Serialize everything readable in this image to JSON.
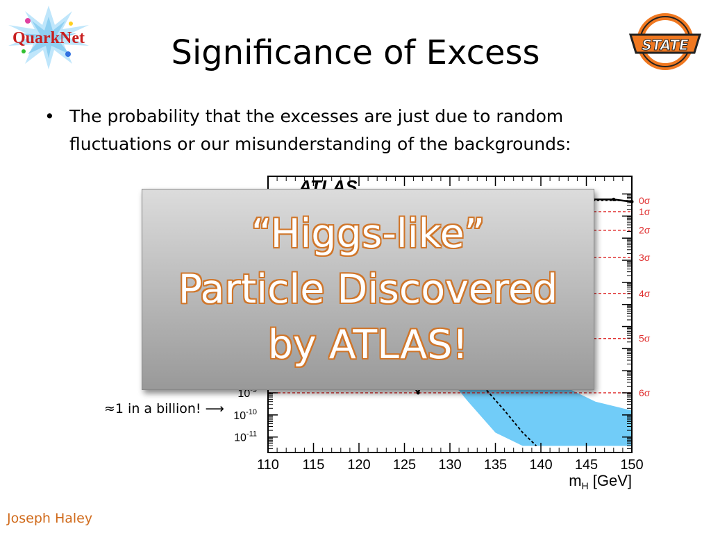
{
  "slide": {
    "title": "Significance of Excess",
    "bullet": "The probability that the excesses are just due to random fluctuations or our misunderstanding of the backgrounds:",
    "overlay_lines": [
      "“Higgs-like”",
      "Particle Discovered",
      "by ATLAS!"
    ],
    "annotation": "≈1 in a billion!  ⟶",
    "footer": "Joseph Haley",
    "logos": {
      "left": "QuarkNet",
      "right": "STATE"
    }
  },
  "colors": {
    "accent": "#d06a1a",
    "band": "#62c7f7",
    "sigma_line": "#e03030",
    "sigma_text": "#e03030"
  },
  "chart_data": {
    "type": "line",
    "title": "ATLAS",
    "xlabel": "m_H [GeV]",
    "ylabel": "",
    "xlim": [
      110,
      150
    ],
    "x_ticks": [
      "110",
      "115",
      "120",
      "125",
      "130",
      "135",
      "140",
      "145",
      "150"
    ],
    "y_ticks": [
      {
        "value": -8,
        "label": "10",
        "exp": "-8"
      },
      {
        "value": -9,
        "label": "10",
        "exp": "-9"
      },
      {
        "value": -10,
        "label": "10",
        "exp": "-10"
      },
      {
        "value": -11,
        "label": "10",
        "exp": "-11"
      }
    ],
    "sigma_levels": [
      {
        "label": "0σ",
        "log10_p": -0.3
      },
      {
        "label": "1σ",
        "log10_p": -0.8
      },
      {
        "label": "2σ",
        "log10_p": -1.64
      },
      {
        "label": "3σ",
        "log10_p": -2.87
      },
      {
        "label": "4σ",
        "log10_p": -4.5
      },
      {
        "label": "5σ",
        "log10_p": -6.54
      },
      {
        "label": "6σ",
        "log10_p": -9.0
      }
    ],
    "observed": {
      "x": [
        110,
        115,
        120,
        122,
        124,
        125,
        126,
        126.5,
        127,
        128,
        130,
        135,
        140,
        145,
        148,
        150
      ],
      "log10_p": [
        -0.25,
        -0.3,
        -0.4,
        -1.2,
        -4.5,
        -7.0,
        -8.7,
        -9.0,
        -8.5,
        -6.0,
        -2.5,
        -0.5,
        -0.3,
        -0.25,
        -0.25,
        -0.35
      ]
    },
    "expected": {
      "x": [
        125,
        127,
        130,
        133,
        136,
        138,
        139.5
      ],
      "log10_p": [
        -4.0,
        -5.4,
        -7.0,
        -8.4,
        -9.8,
        -10.8,
        -11.4
      ]
    },
    "band": {
      "x": [
        125,
        128,
        132,
        135,
        138,
        142,
        146,
        150
      ],
      "upper": [
        -3.0,
        -4.3,
        -6.0,
        -7.1,
        -7.9,
        -8.6,
        -9.4,
        -9.8
      ],
      "lower": [
        -5.5,
        -7.4,
        -9.4,
        -10.8,
        -11.4,
        -11.4,
        -11.4,
        -11.4
      ]
    }
  }
}
